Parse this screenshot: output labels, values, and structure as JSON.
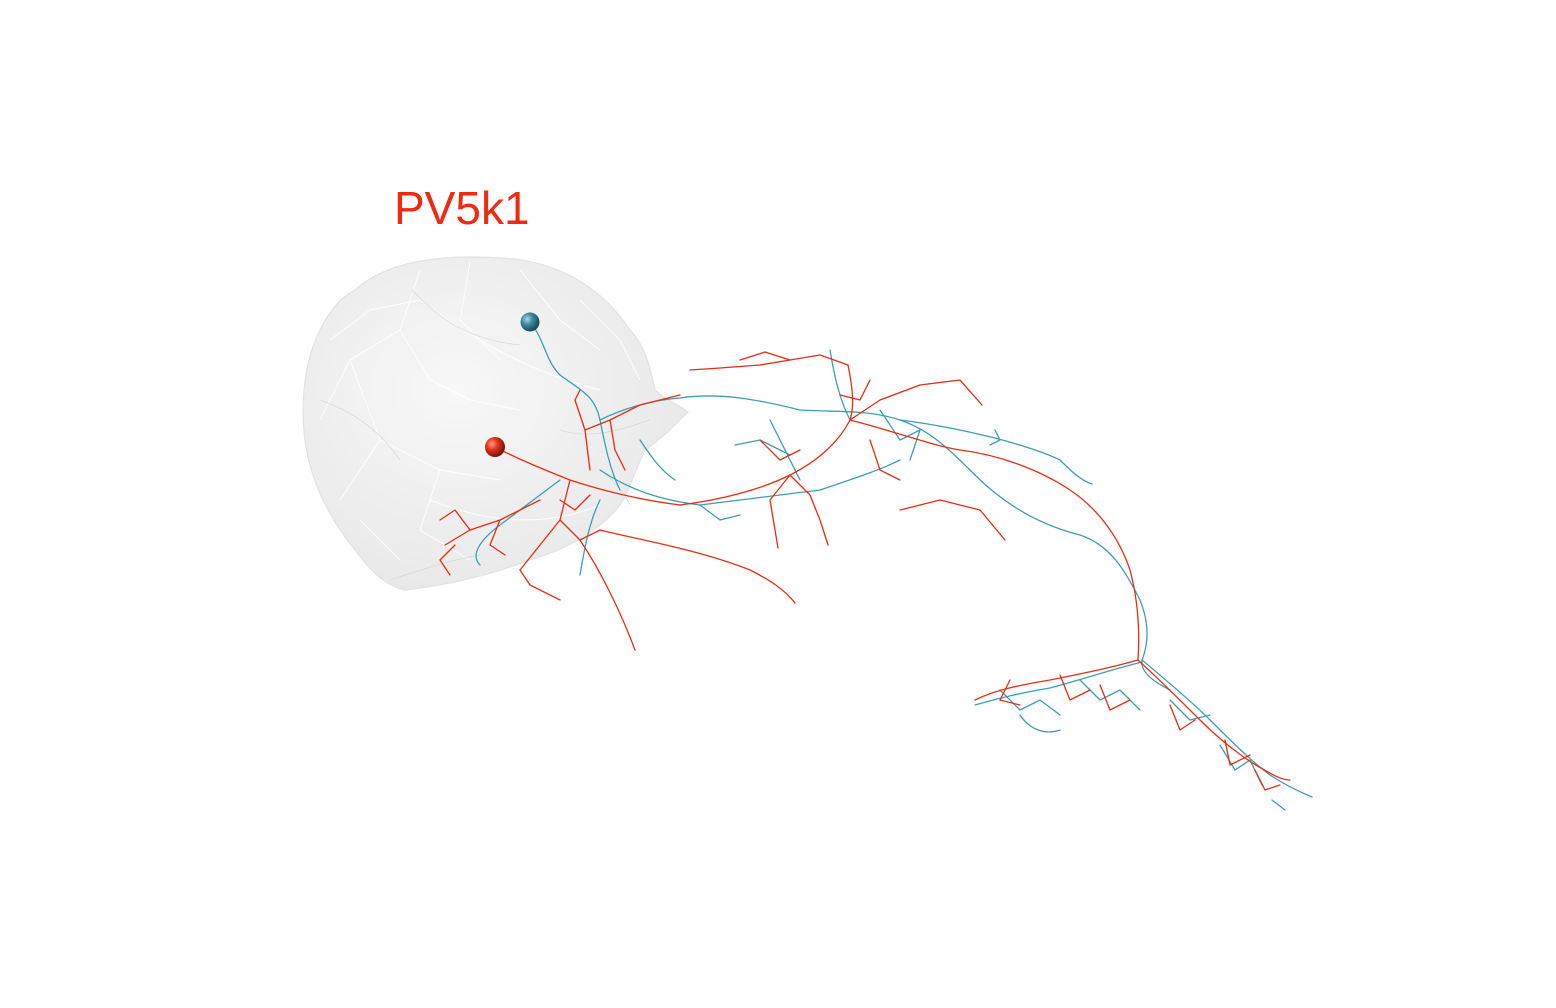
{
  "label": {
    "text": "PV5k1",
    "color": "#ee2a11"
  },
  "colors": {
    "neuron_a": "#ee2a11",
    "neuron_b": "#3a9fb5",
    "soma_a": "#e2331b",
    "soma_b": "#3f88a0",
    "neuropil_fill": "#e8e8e8",
    "background": "#ffffff"
  },
  "neurons": [
    {
      "id": "neuron-red",
      "color": "#ee2a11"
    },
    {
      "id": "neuron-blue",
      "color": "#3a9fb5"
    }
  ]
}
